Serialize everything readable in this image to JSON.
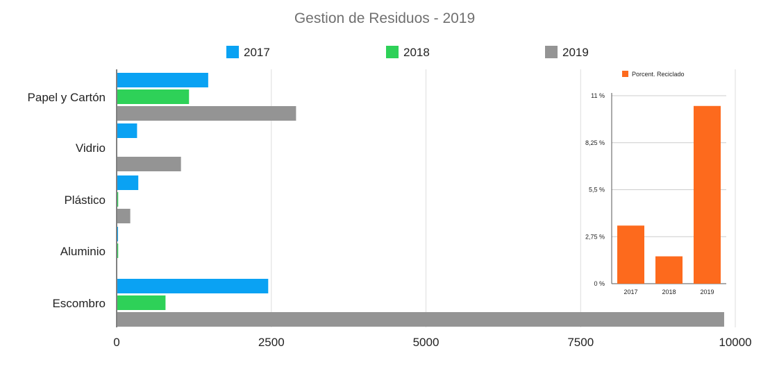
{
  "chart_data": [
    {
      "type": "bar",
      "orientation": "horizontal",
      "title": "Gestion de Residuos - 2019",
      "categories": [
        "Papel y Cartón",
        "Vidrio",
        "Plástico",
        "Aluminio",
        "Escombro"
      ],
      "series": [
        {
          "name": "2017",
          "color": "#0aa2f3",
          "values": [
            1480,
            330,
            350,
            20,
            2450
          ]
        },
        {
          "name": "2018",
          "color": "#2ed158",
          "values": [
            1170,
            0,
            25,
            25,
            790
          ]
        },
        {
          "name": "2019",
          "color": "#949494",
          "values": [
            2900,
            1040,
            220,
            0,
            9820
          ]
        }
      ],
      "xlim": [
        0,
        10000
      ],
      "xticks": [
        "0",
        "2500",
        "5000",
        "7500",
        "10000"
      ],
      "xtick_values": [
        0,
        2500,
        5000,
        7500,
        10000
      ],
      "grid": true,
      "legend_position": "top"
    },
    {
      "type": "bar",
      "orientation": "vertical",
      "legend": "Porcent. Reciclado",
      "color": "#fd6a1d",
      "categories": [
        "2017",
        "2018",
        "2019"
      ],
      "values": [
        3.4,
        1.6,
        10.4
      ],
      "ylim": [
        0,
        11
      ],
      "yticks": [
        "0 %",
        "2,75 %",
        "5,5 %",
        "8,25 %",
        "11 %"
      ],
      "ytick_values": [
        0,
        2.75,
        5.5,
        8.25,
        11
      ],
      "grid": true
    }
  ]
}
